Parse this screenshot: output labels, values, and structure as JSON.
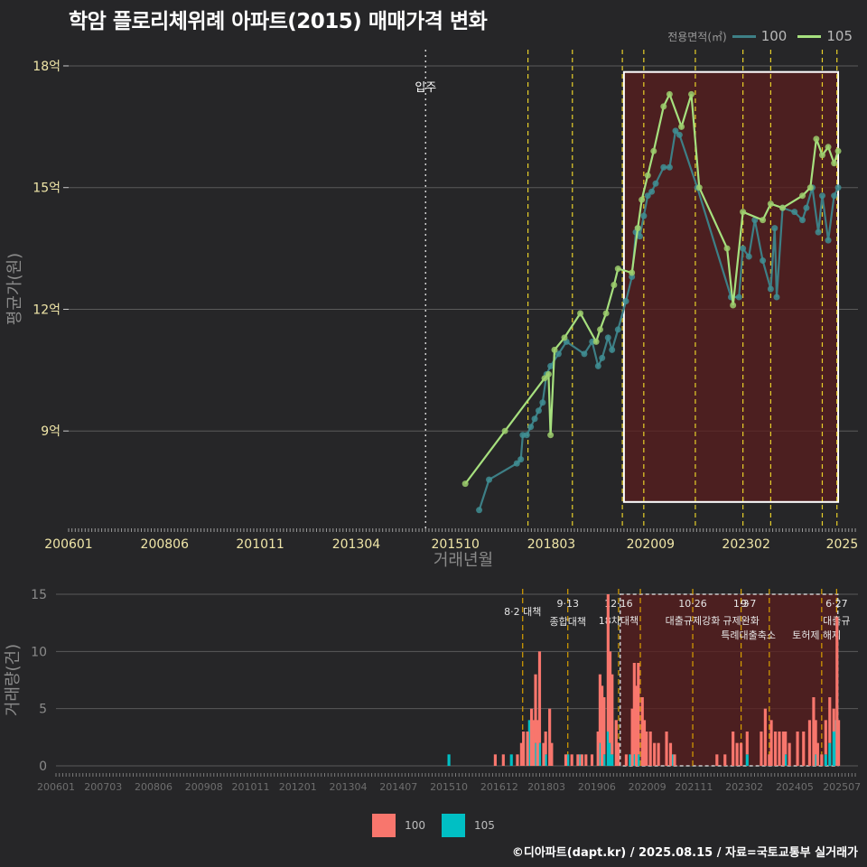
{
  "title": "학암 플로리체위례 아파트(2015) 매매가격 변화",
  "credit": "©디아파트(dapt.kr) / 2025.08.15 / 자료=국토교통부 실거래가",
  "colors": {
    "background": "#262628",
    "grid": "#5a5a5a",
    "line_100": "#3d7f86",
    "line_105": "#a6e07e",
    "point_100": "#3f8e93",
    "point_105": "#9ccd6c",
    "bar_100": "#f8766d",
    "bar_105": "#00bfc4",
    "policy_line": "#e8d02a",
    "policy_line_bottom": "#d9a000",
    "highlight_fill": "#5a1e1e",
    "tick_text": "#f0e6a8"
  },
  "legend_top": {
    "title": "전용면적(㎡)",
    "items": [
      "100",
      "105"
    ]
  },
  "legend_bottom": {
    "items": [
      "100",
      "105"
    ]
  },
  "chart_data": [
    {
      "type": "line",
      "title": "학암 플로리체위례 아파트(2015) 매매가격 변화",
      "xlabel": "거래년월",
      "ylabel": "평균가(원)",
      "ylim": [
        6.6,
        18.4
      ],
      "xlim": [
        2006.0,
        2025.9
      ],
      "x_ticks": [
        {
          "value": 2006.0,
          "label": "200601"
        },
        {
          "value": 2008.42,
          "label": "200806"
        },
        {
          "value": 2010.83,
          "label": "201011"
        },
        {
          "value": 2013.25,
          "label": "201304"
        },
        {
          "value": 2015.75,
          "label": "201510"
        },
        {
          "value": 2018.17,
          "label": "201803"
        },
        {
          "value": 2020.67,
          "label": "202009"
        },
        {
          "value": 2023.08,
          "label": "202302"
        },
        {
          "value": 2025.5,
          "label": "2025"
        }
      ],
      "y_ticks": [
        {
          "value": 9,
          "label": "9억"
        },
        {
          "value": 12,
          "label": "12억"
        },
        {
          "value": 15,
          "label": "15억"
        },
        {
          "value": 18,
          "label": "18억"
        }
      ],
      "annotations": [
        {
          "x": 2015.0,
          "label": "입주",
          "style": "dotted"
        }
      ],
      "policy_lines": [
        2017.58,
        2018.7,
        2019.96,
        2020.5,
        2021.8,
        2023.0,
        2023.7,
        2025.0,
        2025.37
      ],
      "highlight_range": [
        2020.0,
        2025.4
      ],
      "highlight_yrange": [
        7.25,
        17.85
      ],
      "series": [
        {
          "name": "100",
          "points": [
            [
              2016.35,
              7.05
            ],
            [
              2016.6,
              7.8
            ],
            [
              2017.3,
              8.2
            ],
            [
              2017.4,
              8.3
            ],
            [
              2017.45,
              8.9
            ],
            [
              2017.55,
              8.9
            ],
            [
              2017.65,
              9.1
            ],
            [
              2017.75,
              9.3
            ],
            [
              2017.85,
              9.5
            ],
            [
              2017.95,
              9.7
            ],
            [
              2018.05,
              10.4
            ],
            [
              2018.15,
              10.6
            ],
            [
              2018.35,
              10.9
            ],
            [
              2018.55,
              11.2
            ],
            [
              2019.0,
              10.9
            ],
            [
              2019.2,
              11.2
            ],
            [
              2019.35,
              10.6
            ],
            [
              2019.45,
              10.8
            ],
            [
              2019.6,
              11.3
            ],
            [
              2019.7,
              11.0
            ],
            [
              2019.85,
              11.5
            ],
            [
              2020.05,
              12.2
            ],
            [
              2020.2,
              12.8
            ],
            [
              2020.3,
              13.9
            ],
            [
              2020.35,
              14.0
            ],
            [
              2020.4,
              13.8
            ],
            [
              2020.5,
              14.3
            ],
            [
              2020.6,
              14.8
            ],
            [
              2020.7,
              14.9
            ],
            [
              2020.8,
              15.1
            ],
            [
              2021.0,
              15.5
            ],
            [
              2021.15,
              15.5
            ],
            [
              2021.3,
              16.4
            ],
            [
              2021.4,
              16.3
            ],
            [
              2021.85,
              15.0
            ],
            [
              2022.7,
              12.3
            ],
            [
              2022.9,
              12.3
            ],
            [
              2023.0,
              13.5
            ],
            [
              2023.15,
              13.3
            ],
            [
              2023.3,
              14.2
            ],
            [
              2023.5,
              13.2
            ],
            [
              2023.7,
              12.5
            ],
            [
              2023.8,
              14.0
            ],
            [
              2023.85,
              12.3
            ],
            [
              2024.0,
              14.5
            ],
            [
              2024.3,
              14.4
            ],
            [
              2024.5,
              14.2
            ],
            [
              2024.6,
              14.5
            ],
            [
              2024.75,
              15.0
            ],
            [
              2024.9,
              13.9
            ],
            [
              2025.0,
              14.8
            ],
            [
              2025.15,
              13.7
            ],
            [
              2025.3,
              14.8
            ],
            [
              2025.4,
              15.0
            ]
          ]
        },
        {
          "name": "105",
          "points": [
            [
              2016.0,
              7.7
            ],
            [
              2017.0,
              9.0
            ],
            [
              2018.0,
              10.3
            ],
            [
              2018.1,
              10.4
            ],
            [
              2018.15,
              8.9
            ],
            [
              2018.25,
              11.0
            ],
            [
              2018.5,
              11.3
            ],
            [
              2018.9,
              11.9
            ],
            [
              2019.3,
              11.2
            ],
            [
              2019.4,
              11.5
            ],
            [
              2019.55,
              11.9
            ],
            [
              2019.75,
              12.6
            ],
            [
              2019.85,
              13.0
            ],
            [
              2020.2,
              12.9
            ],
            [
              2020.35,
              14.0
            ],
            [
              2020.45,
              14.7
            ],
            [
              2020.6,
              15.3
            ],
            [
              2020.75,
              15.9
            ],
            [
              2021.0,
              17.0
            ],
            [
              2021.15,
              17.3
            ],
            [
              2021.45,
              16.5
            ],
            [
              2021.7,
              17.3
            ],
            [
              2021.9,
              15.0
            ],
            [
              2022.6,
              13.5
            ],
            [
              2022.75,
              12.1
            ],
            [
              2023.0,
              14.4
            ],
            [
              2023.5,
              14.2
            ],
            [
              2023.7,
              14.6
            ],
            [
              2024.0,
              14.5
            ],
            [
              2024.5,
              14.8
            ],
            [
              2024.7,
              15.0
            ],
            [
              2024.85,
              16.2
            ],
            [
              2025.0,
              15.8
            ],
            [
              2025.15,
              16.0
            ],
            [
              2025.3,
              15.6
            ],
            [
              2025.4,
              15.9
            ]
          ]
        }
      ]
    },
    {
      "type": "bar",
      "stacked": true,
      "xlabel": "",
      "ylabel": "거래량(건)",
      "ylim": [
        0,
        15
      ],
      "xlim": [
        2006.0,
        2025.9
      ],
      "x_ticks": [
        {
          "value": 2006.0,
          "label": "200601"
        },
        {
          "value": 2007.17,
          "label": "200703"
        },
        {
          "value": 2008.42,
          "label": "200806"
        },
        {
          "value": 2009.67,
          "label": "200908"
        },
        {
          "value": 2010.83,
          "label": "201011"
        },
        {
          "value": 2012.0,
          "label": "201201"
        },
        {
          "value": 2013.25,
          "label": "201304"
        },
        {
          "value": 2014.5,
          "label": "201407"
        },
        {
          "value": 2015.75,
          "label": "201510"
        },
        {
          "value": 2017.0,
          "label": "201612"
        },
        {
          "value": 2018.17,
          "label": "201803"
        },
        {
          "value": 2019.42,
          "label": "201906"
        },
        {
          "value": 2020.67,
          "label": "202009"
        },
        {
          "value": 2021.83,
          "label": "202111"
        },
        {
          "value": 2023.08,
          "label": "202302"
        },
        {
          "value": 2024.33,
          "label": "202405"
        },
        {
          "value": 2025.5,
          "label": "202507"
        }
      ],
      "y_ticks": [
        {
          "value": 0,
          "label": "0"
        },
        {
          "value": 5,
          "label": "5"
        },
        {
          "value": 10,
          "label": "10"
        },
        {
          "value": 15,
          "label": "15"
        }
      ],
      "policies": [
        {
          "x": 2017.58,
          "date": "",
          "label": "8·2 대책"
        },
        {
          "x": 2018.7,
          "date": "9·13",
          "label": "종합대책"
        },
        {
          "x": 2019.96,
          "date": "12·16",
          "label": "18차대책"
        },
        {
          "x": 2020.5,
          "date": "",
          "label": ""
        },
        {
          "x": 2021.8,
          "date": "10·26",
          "label": "대출규제강화"
        },
        {
          "x": 2023.0,
          "date": "1·3",
          "label": "규제완화"
        },
        {
          "x": 2023.7,
          "date": "9·7",
          "label": "특례대출축소"
        },
        {
          "x": 2025.0,
          "date": "",
          "label": "토허제 해제"
        },
        {
          "x": 2025.37,
          "date": "6·27",
          "label": "대출규"
        }
      ],
      "highlight_range": [
        2020.0,
        2025.4
      ],
      "series": [
        {
          "name": "100",
          "bars": [
            [
              2016.9,
              1
            ],
            [
              2017.1,
              1
            ],
            [
              2017.45,
              1
            ],
            [
              2017.55,
              2
            ],
            [
              2017.6,
              3
            ],
            [
              2017.7,
              3
            ],
            [
              2017.8,
              5
            ],
            [
              2017.85,
              4
            ],
            [
              2017.9,
              6
            ],
            [
              2017.95,
              4
            ],
            [
              2018.0,
              8
            ],
            [
              2018.1,
              2
            ],
            [
              2018.15,
              2
            ],
            [
              2018.25,
              5
            ],
            [
              2018.3,
              2
            ],
            [
              2018.65,
              1
            ],
            [
              2018.8,
              1
            ],
            [
              2018.95,
              1
            ],
            [
              2019.05,
              1
            ],
            [
              2019.15,
              1
            ],
            [
              2019.3,
              1
            ],
            [
              2019.45,
              3
            ],
            [
              2019.5,
              6
            ],
            [
              2019.55,
              7
            ],
            [
              2019.6,
              5
            ],
            [
              2019.7,
              12
            ],
            [
              2019.75,
              8
            ],
            [
              2019.8,
              7
            ],
            [
              2019.9,
              4
            ],
            [
              2019.95,
              2
            ],
            [
              2020.15,
              1
            ],
            [
              2020.3,
              5
            ],
            [
              2020.35,
              8
            ],
            [
              2020.4,
              7
            ],
            [
              2020.45,
              8
            ],
            [
              2020.55,
              6
            ],
            [
              2020.6,
              4
            ],
            [
              2020.65,
              3
            ],
            [
              2020.75,
              3
            ],
            [
              2020.85,
              2
            ],
            [
              2020.95,
              2
            ],
            [
              2021.15,
              3
            ],
            [
              2021.25,
              2
            ],
            [
              2021.35,
              1
            ],
            [
              2022.4,
              1
            ],
            [
              2022.6,
              1
            ],
            [
              2022.8,
              3
            ],
            [
              2022.9,
              2
            ],
            [
              2023.0,
              2
            ],
            [
              2023.15,
              2
            ],
            [
              2023.5,
              3
            ],
            [
              2023.6,
              5
            ],
            [
              2023.7,
              1
            ],
            [
              2023.75,
              4
            ],
            [
              2023.85,
              3
            ],
            [
              2023.95,
              3
            ],
            [
              2024.05,
              3
            ],
            [
              2024.1,
              2
            ],
            [
              2024.2,
              2
            ],
            [
              2024.4,
              3
            ],
            [
              2024.55,
              3
            ],
            [
              2024.7,
              4
            ],
            [
              2024.8,
              6
            ],
            [
              2024.85,
              3
            ],
            [
              2024.9,
              2
            ],
            [
              2025.0,
              1
            ],
            [
              2025.1,
              3
            ],
            [
              2025.2,
              4
            ],
            [
              2025.3,
              2
            ],
            [
              2025.38,
              13
            ],
            [
              2025.42,
              4
            ]
          ]
        },
        {
          "name": "105",
          "bars": [
            [
              2015.75,
              1
            ],
            [
              2017.3,
              1
            ],
            [
              2017.75,
              4
            ],
            [
              2017.9,
              2
            ],
            [
              2018.0,
              2
            ],
            [
              2018.15,
              1
            ],
            [
              2018.7,
              1
            ],
            [
              2019.0,
              1
            ],
            [
              2019.5,
              2
            ],
            [
              2019.6,
              1
            ],
            [
              2019.7,
              3
            ],
            [
              2019.75,
              2
            ],
            [
              2019.8,
              1
            ],
            [
              2020.25,
              1
            ],
            [
              2020.35,
              1
            ],
            [
              2020.45,
              1
            ],
            [
              2021.3,
              1
            ],
            [
              2023.15,
              1
            ],
            [
              2024.1,
              1
            ],
            [
              2024.85,
              1
            ],
            [
              2025.1,
              1
            ],
            [
              2025.2,
              2
            ],
            [
              2025.3,
              3
            ],
            [
              2025.35,
              4
            ]
          ]
        }
      ]
    }
  ]
}
